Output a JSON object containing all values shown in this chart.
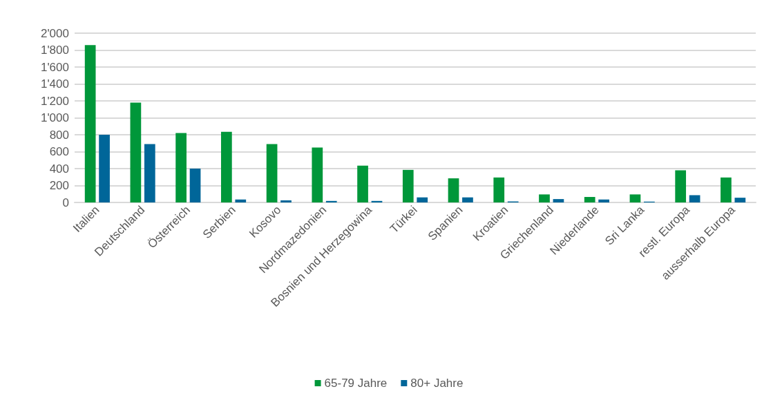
{
  "chart_data": {
    "type": "bar",
    "categories": [
      "Italien",
      "Deutschland",
      "Österreich",
      "Serbien",
      "Kosovo",
      "Nordmazedonien",
      "Bosnien und Herzegowina",
      "Türkei",
      "Spanien",
      "Kroatien",
      "Griechenland",
      "Niederlande",
      "Sri Lanka",
      "restl. Europa",
      "ausserhalb Europa"
    ],
    "series": [
      {
        "name": "65-79 Jahre",
        "color": "#00973a",
        "values": [
          1860,
          1180,
          820,
          835,
          690,
          650,
          435,
          385,
          285,
          295,
          95,
          65,
          95,
          380,
          295
        ]
      },
      {
        "name": "80+ Jahre",
        "color": "#006699",
        "values": [
          800,
          690,
          400,
          35,
          25,
          18,
          18,
          60,
          60,
          12,
          40,
          35,
          10,
          86,
          56
        ]
      }
    ],
    "ylim": [
      0,
      2000
    ],
    "yticks": [
      0,
      200,
      400,
      600,
      800,
      {
        "value": 1000,
        "label": "1'000"
      },
      {
        "value": 1200,
        "label": "1'200"
      },
      {
        "value": 1400,
        "label": "1'400"
      },
      {
        "value": 1600,
        "label": "1'600"
      },
      {
        "value": 1800,
        "label": "1'800"
      },
      {
        "value": 2000,
        "label": "2'000"
      }
    ],
    "grid": "y",
    "legend": "bottom"
  }
}
